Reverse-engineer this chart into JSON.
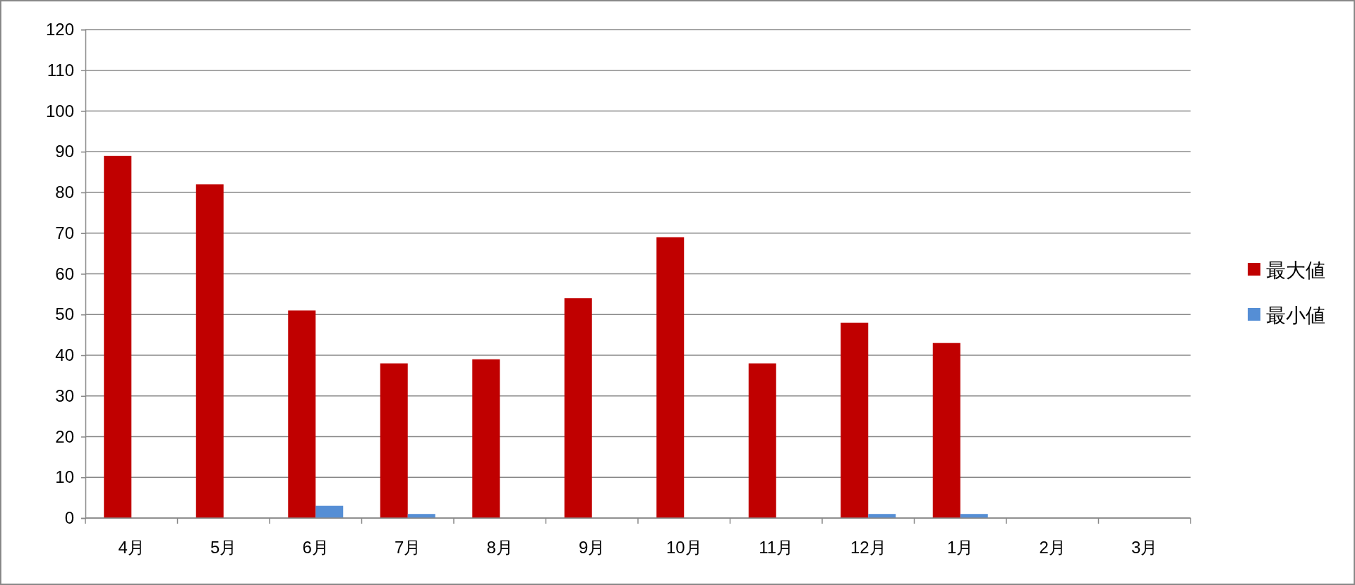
{
  "chart_data": {
    "type": "bar",
    "categories": [
      "4月",
      "5月",
      "6月",
      "7月",
      "8月",
      "9月",
      "10月",
      "11月",
      "12月",
      "1月",
      "2月",
      "3月"
    ],
    "series": [
      {
        "name": "最大値",
        "color": "#c00000",
        "values": [
          89,
          82,
          51,
          38,
          39,
          54,
          69,
          38,
          48,
          43,
          null,
          null
        ]
      },
      {
        "name": "最小値",
        "color": "#558ed5",
        "values": [
          0,
          0,
          3,
          1,
          0,
          0,
          0,
          0,
          1,
          1,
          null,
          null
        ]
      }
    ],
    "ylim": [
      0,
      120
    ],
    "yticks": [
      0,
      10,
      20,
      30,
      40,
      50,
      60,
      70,
      80,
      90,
      100,
      110,
      120
    ],
    "grid": "y",
    "legend": "right"
  }
}
